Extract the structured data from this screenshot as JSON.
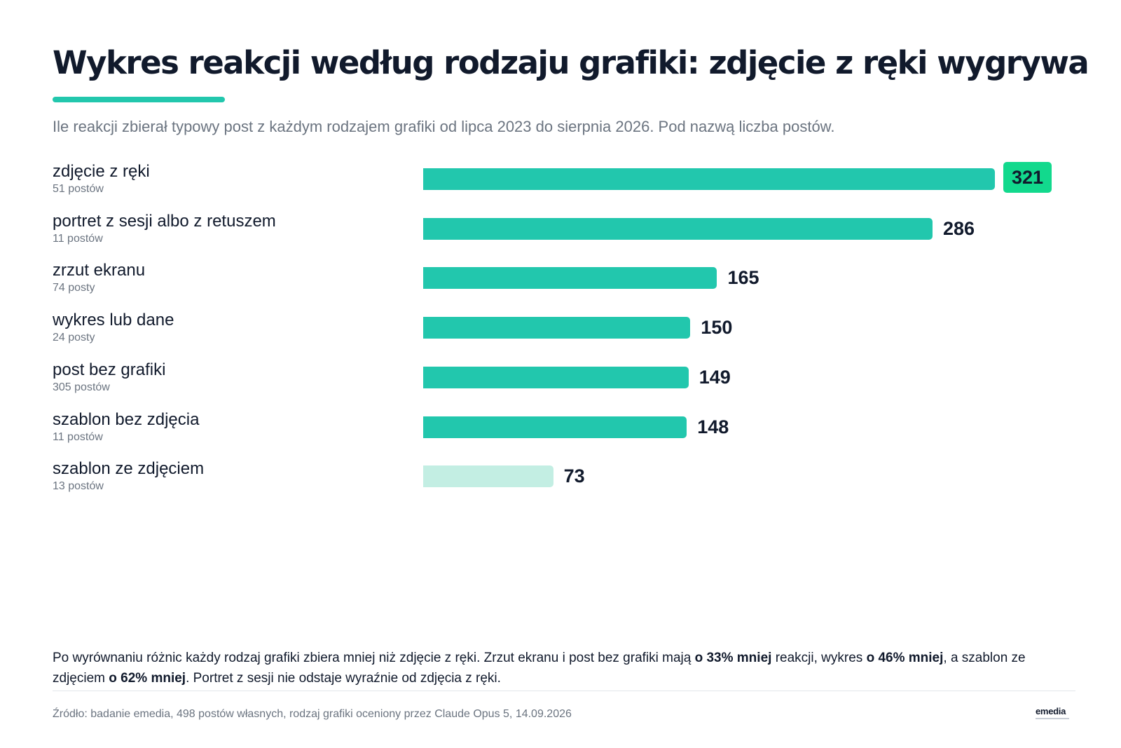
{
  "header": {
    "title": "Wykres reakcji według rodzaju grafiki: zdjęcie z ręki wygrywa",
    "subtitle": "Ile reakcji zbierał typowy post z każdym rodzajem grafiki od lipca 2023 do sierpnia 2026. Pod nazwą liczba postów."
  },
  "chart_data": {
    "type": "bar",
    "orientation": "horizontal",
    "categories": [
      "zdjęcie z ręki",
      "portret z sesji albo z retuszem",
      "zrzut ekranu",
      "wykres lub dane",
      "post bez grafiki",
      "szablon bez zdjęcia",
      "szablon ze zdjęciem"
    ],
    "post_counts": [
      "51 postów",
      "11 postów",
      "74 posty",
      "24 posty",
      "305 postów",
      "11 postów",
      "13 postów"
    ],
    "values": [
      321,
      286,
      165,
      150,
      149,
      148,
      73
    ],
    "highlight_index": 0,
    "light_index": 6,
    "colors": {
      "bar": "#22c7ad",
      "bar_light": "#c3eee3",
      "highlight": "#12d98d"
    },
    "xlim": [
      0,
      321
    ]
  },
  "footer": {
    "note_parts": [
      {
        "text": "Po wyrównaniu różnic każdy rodzaj grafiki zbiera mniej niż zdjęcie z ręki. Zrzut ekranu i post bez grafiki mają ",
        "bold": false
      },
      {
        "text": "o 33% mniej",
        "bold": true
      },
      {
        "text": " reakcji, wykres ",
        "bold": false
      },
      {
        "text": "o 46% mniej",
        "bold": true
      },
      {
        "text": ", a szablon ze zdjęciem ",
        "bold": false
      },
      {
        "text": "o 62% mniej",
        "bold": true
      },
      {
        "text": ". Portret z sesji nie odstaje wyraźnie od zdjęcia z ręki.",
        "bold": false
      }
    ],
    "source": "Źródło: badanie emedia, 498 postów własnych, rodzaj grafiki oceniony przez Claude Opus 5, 14.09.2026",
    "logo": "emedia"
  }
}
